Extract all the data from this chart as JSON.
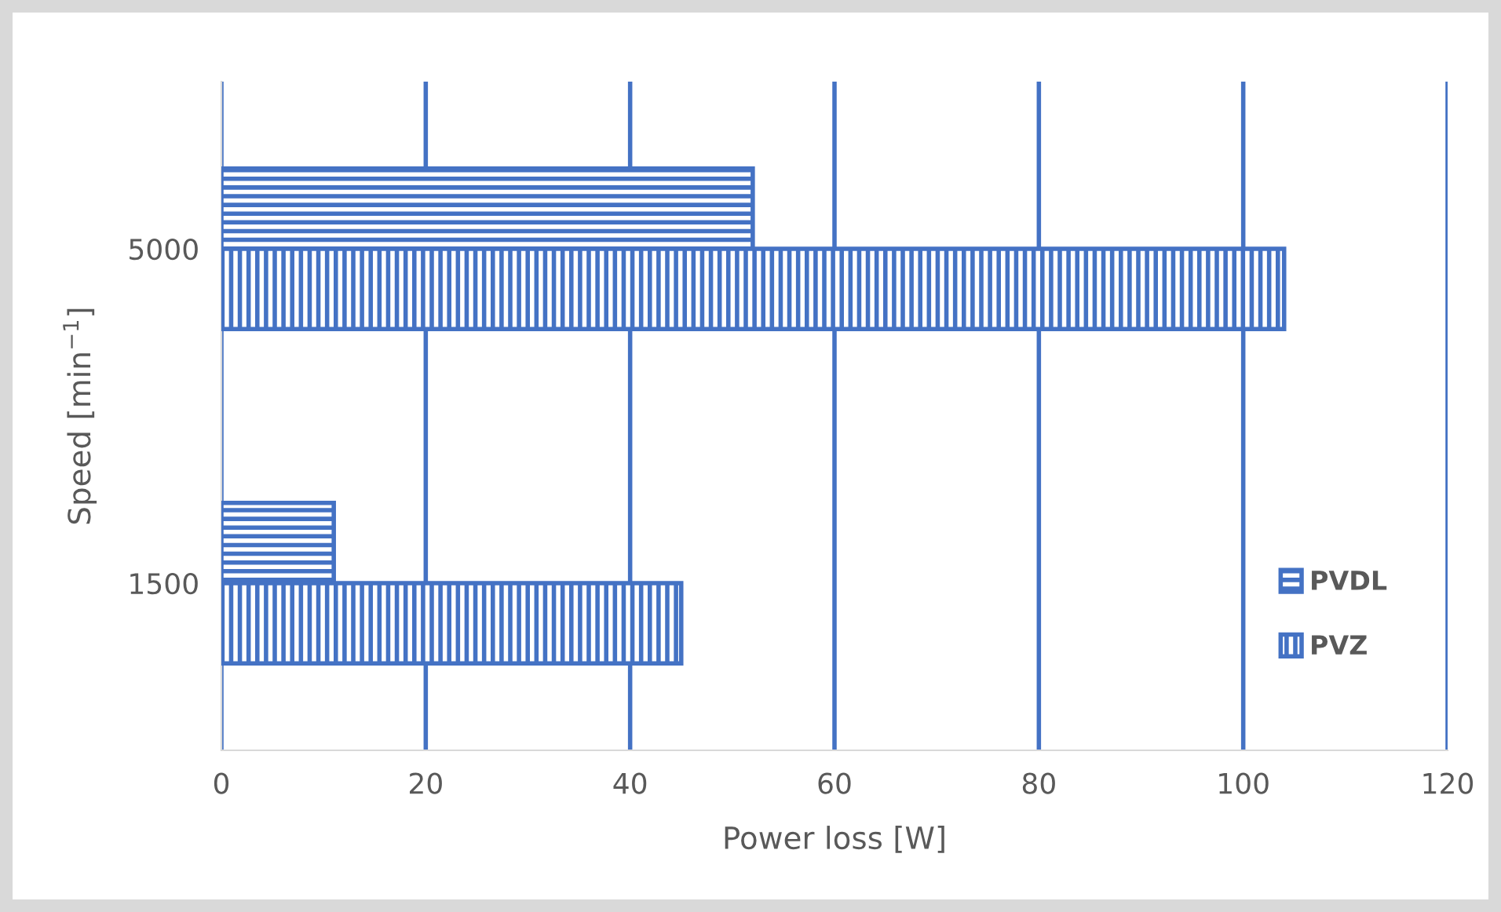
{
  "chart_data": {
    "type": "bar",
    "orientation": "horizontal",
    "categories": [
      "5000",
      "1500"
    ],
    "series": [
      {
        "name": "PVDL",
        "color": "#4472c4",
        "values": [
          52,
          11
        ]
      },
      {
        "name": "PVZ",
        "color": "#4472c4",
        "values": [
          104,
          45
        ]
      }
    ],
    "xlabel": "Power loss [W]",
    "ylabel": "Speed [min$^{−1}$]",
    "xlim": [
      0,
      120
    ],
    "xticks": [
      0,
      20,
      40,
      60,
      80,
      100,
      120
    ],
    "grid": "x",
    "legend": "bottom right"
  }
}
